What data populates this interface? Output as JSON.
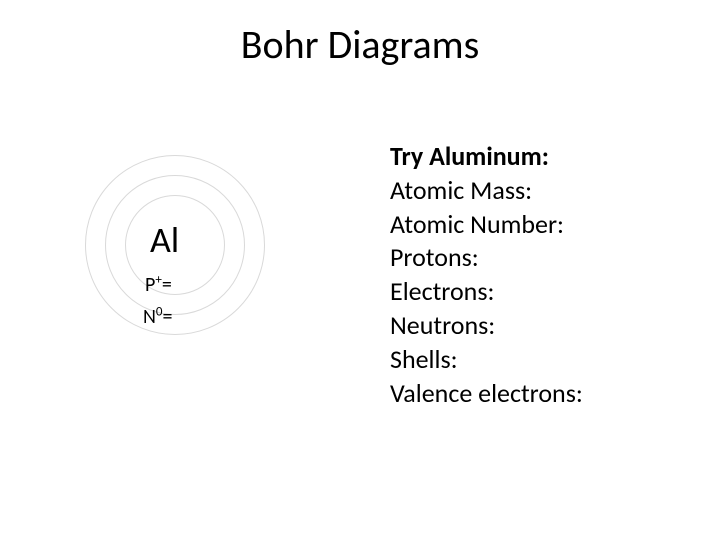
{
  "title": "Bohr Diagrams",
  "diagram": {
    "element_symbol": "Al",
    "proton_prefix": "P",
    "proton_super": "+",
    "proton_suffix": "=",
    "neutron_prefix": "N",
    "neutron_super": "0",
    "neutron_suffix": "=",
    "shell_color": "#d9d9d9",
    "shell_count": 3
  },
  "info": {
    "heading": "Try  Aluminum:",
    "items": [
      "Atomic Mass:",
      "Atomic Number:",
      "Protons:",
      "Electrons:",
      "Neutrons:",
      "Shells:",
      "Valence electrons:"
    ]
  },
  "colors": {
    "background": "#ffffff",
    "text": "#000000"
  },
  "typography": {
    "title_fontsize": 40,
    "symbol_fontsize": 36,
    "label_fontsize": 20,
    "info_fontsize": 26,
    "font_family": "Calibri"
  }
}
